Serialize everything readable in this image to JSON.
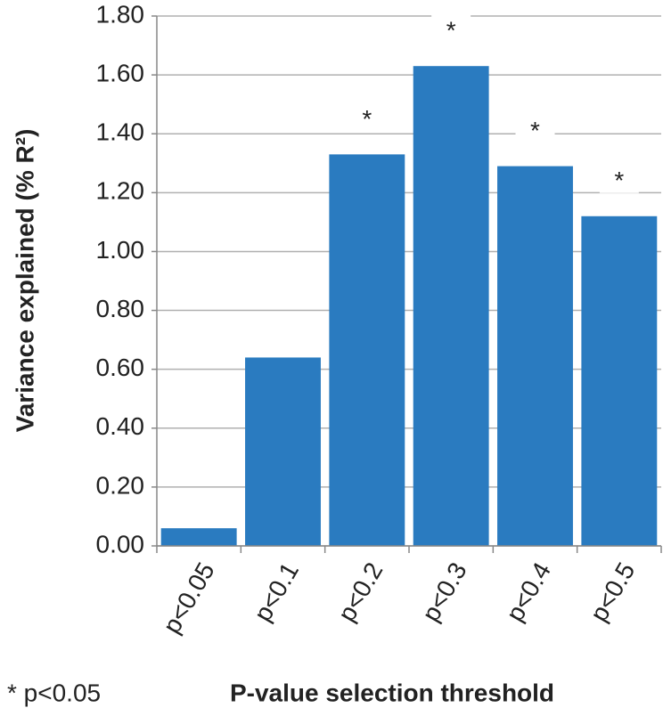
{
  "chart_data": {
    "type": "bar",
    "categories": [
      "p<0.05",
      "p<0.1",
      "p<0.2",
      "p<0.3",
      "p<0.4",
      "p<0.5"
    ],
    "values": [
      0.06,
      0.64,
      1.33,
      1.63,
      1.29,
      1.12
    ],
    "color": "#2a7bc0",
    "y_label": "Variance explained (% R²)",
    "x_label": "P-value selection threshold",
    "ylim": [
      0,
      1.8
    ],
    "yticks": [
      {
        "value": 0,
        "label": "0.00"
      },
      {
        "value": 0.2,
        "label": "0.20"
      },
      {
        "value": 0.4,
        "label": "0.40"
      },
      {
        "value": 0.6,
        "label": "0.60"
      },
      {
        "value": 0.8,
        "label": "0.80"
      },
      {
        "value": 1,
        "label": "1.00"
      },
      {
        "value": 1.2,
        "label": "1.20"
      },
      {
        "value": 1.4,
        "label": "1.40"
      },
      {
        "value": 1.6,
        "label": "1.60"
      },
      {
        "value": 1.8,
        "label": "1.80"
      }
    ],
    "grid": true,
    "annotations": [
      {
        "text": "*",
        "x": "p<0.2"
      },
      {
        "text": "*",
        "x": "p<0.3"
      },
      {
        "text": "*",
        "x": "p<0.4"
      },
      {
        "text": "*",
        "x": "p<0.5"
      }
    ],
    "footnote": "* p<0.05"
  }
}
